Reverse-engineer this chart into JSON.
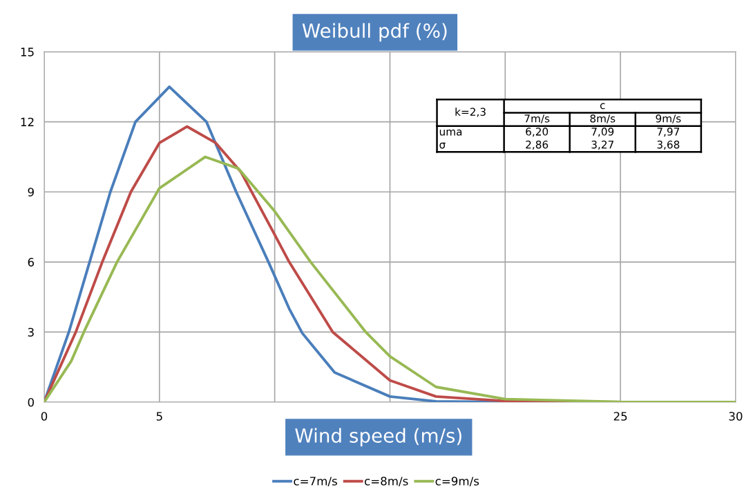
{
  "chart_data": {
    "type": "line",
    "title": "Weibull pdf (%)",
    "xlabel": "Wind speed (m/s)",
    "xlim": [
      0,
      30
    ],
    "ylim": [
      0,
      15
    ],
    "xticks": [
      0,
      5,
      {
        "value": 10,
        "label": null
      },
      {
        "value": 15,
        "label": null
      },
      {
        "value": 20,
        "label": null
      },
      25,
      30
    ],
    "yticks": [
      0,
      3,
      6,
      9,
      12,
      15
    ],
    "grid": true,
    "legend": "bottom",
    "series": [
      {
        "name": "c=7m/s",
        "color": "#4a7ebb",
        "x": [
          0,
          1.07,
          1.97,
          2.87,
          3.96,
          5.43,
          7.04,
          8.33,
          9.73,
          10.63,
          11.2,
          12.6,
          15,
          17,
          20,
          25,
          30
        ],
        "values": [
          0,
          3,
          6,
          9,
          12,
          13.5,
          12,
          9,
          6,
          4.0,
          2.95,
          1.27,
          0.24,
          0.03,
          0,
          0,
          0
        ]
      },
      {
        "name": "c=8m/s",
        "color": "#be4b48",
        "x": [
          0,
          1.37,
          2.52,
          3.76,
          5,
          6.2,
          7.44,
          8.54,
          9.93,
          10.63,
          12.52,
          15,
          17,
          20,
          25,
          30
        ],
        "values": [
          0,
          3,
          6,
          9,
          11.1,
          11.8,
          11.1,
          9.85,
          7.3,
          6.0,
          3,
          0.93,
          0.24,
          0.05,
          0,
          0
        ]
      },
      {
        "name": "c=9m/s",
        "color": "#98b954",
        "x": [
          0,
          1.18,
          1.72,
          3.16,
          5,
          6.99,
          8.43,
          10,
          11.56,
          13.95,
          15,
          17,
          20,
          25,
          30
        ],
        "values": [
          0,
          1.77,
          3,
          6,
          9.16,
          10.5,
          10.0,
          8.17,
          6,
          3,
          1.96,
          0.65,
          0.13,
          0.01,
          0
        ]
      }
    ],
    "annotations": [
      "k=2,3",
      "c",
      "7m/s",
      "8m/s",
      "9m/s",
      "uma",
      "6,20",
      "7,09",
      "7,97",
      "σ",
      "2,86",
      "3,27",
      "3,68"
    ]
  }
}
